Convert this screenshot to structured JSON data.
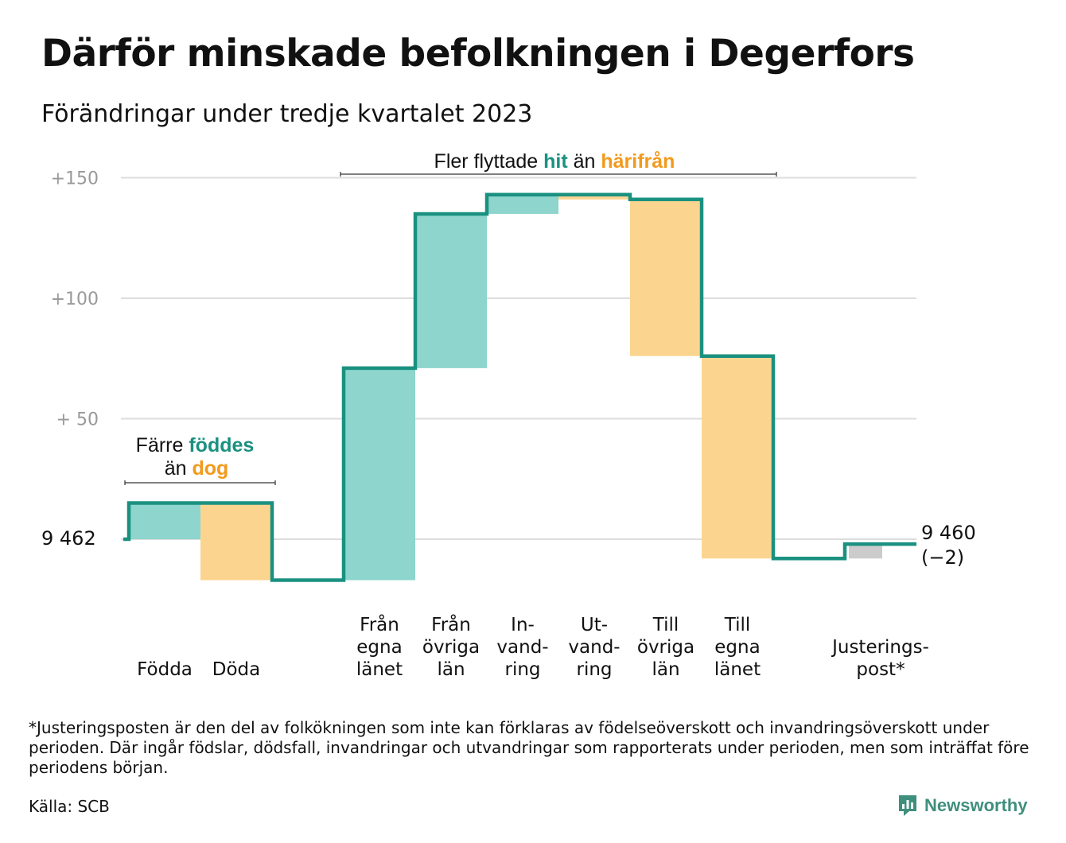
{
  "title": "Därför minskade befolkningen i Degerfors",
  "subtitle": "Förändringar under tredje kvartalet 2023",
  "colors": {
    "inflow": "#8dd5cd",
    "outflow": "#fbd58f",
    "adjustment": "#cccccc",
    "line": "#1a9180",
    "hit_text": "#1a9180",
    "harifran_text": "#f29a1d",
    "grid": "#dddddd",
    "tick": "#999999",
    "brand": "#3f8f7d"
  },
  "chart_data": {
    "type": "waterfall",
    "start_value": 9462,
    "start_label": "9  462",
    "end_label_line1": "9 460",
    "end_label_line2": "(−2)",
    "yticks": [
      {
        "value": 150,
        "label": "+150"
      },
      {
        "value": 100,
        "label": "+100"
      },
      {
        "value": 50,
        "label": "+  50"
      },
      {
        "value": 0,
        "label": ""
      }
    ],
    "ylim": [
      -17,
      150
    ],
    "grid": true,
    "steps": [
      {
        "label_lines": [
          "Födda"
        ],
        "change": 15,
        "kind": "inflow"
      },
      {
        "label_lines": [
          "Döda"
        ],
        "change": -32,
        "kind": "outflow"
      },
      {
        "label_lines": [],
        "change": 0,
        "kind": "gap"
      },
      {
        "label_lines": [
          "Från",
          "egna",
          "länet"
        ],
        "change": 88,
        "kind": "inflow"
      },
      {
        "label_lines": [
          "Från",
          "övriga",
          "län"
        ],
        "change": 64,
        "kind": "inflow"
      },
      {
        "label_lines": [
          "In-",
          "vand-",
          "ring"
        ],
        "change": 8,
        "kind": "inflow"
      },
      {
        "label_lines": [
          "Ut-",
          "vand-",
          "ring"
        ],
        "change": -2,
        "kind": "outflow"
      },
      {
        "label_lines": [
          "Till",
          "övriga",
          "län"
        ],
        "change": -65,
        "kind": "outflow"
      },
      {
        "label_lines": [
          "Till",
          "egna",
          "länet"
        ],
        "change": -84,
        "kind": "outflow"
      },
      {
        "label_lines": [],
        "change": 0,
        "kind": "gap"
      },
      {
        "label_lines": [
          "Justerings-",
          "post*"
        ],
        "change": 6,
        "kind": "adjustment"
      }
    ],
    "annotations": {
      "birth": {
        "line1_a": "Färre ",
        "line1_b": "föddes",
        "line2_a": "än ",
        "line2_b": "dog"
      },
      "move": {
        "part_a": "Fler flyttade ",
        "part_b": "hit",
        "part_c": " än ",
        "part_d": "härifrån"
      }
    }
  },
  "footnote": "*Justeringsposten är den del av folkökningen som inte kan förklaras av födelseöverskott och invandringsöverskott under perioden. Där ingår födslar, dödsfall, invandringar och utvandringar som rapporterats under perioden, men som inträffat före periodens början.",
  "source": "Källa: SCB",
  "brand": {
    "name": "Newsworthy",
    "icon": "newsworthy-logo-icon"
  }
}
